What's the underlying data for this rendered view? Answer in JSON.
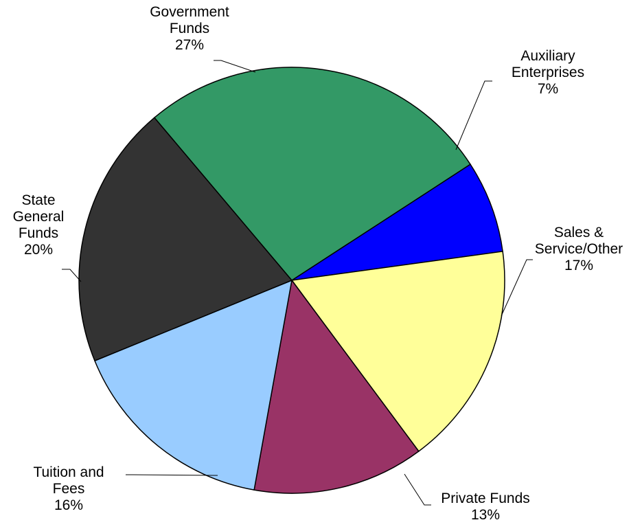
{
  "chart_data": {
    "type": "pie",
    "slices": [
      {
        "name": "Auxiliary Enterprises",
        "label_lines": [
          "Auxiliary",
          "Enterprises"
        ],
        "percent_label": "7%",
        "value": 7,
        "color": "#0000ff"
      },
      {
        "name": "Sales & Service/Other",
        "label_lines": [
          "Sales &",
          "Service/Other"
        ],
        "percent_label": "17%",
        "value": 17,
        "color": "#ffff99"
      },
      {
        "name": "Private Funds",
        "label_lines": [
          "Private Funds"
        ],
        "percent_label": "13%",
        "value": 13,
        "color": "#993366"
      },
      {
        "name": "Tuition and Fees",
        "label_lines": [
          "Tuition and",
          "Fees"
        ],
        "percent_label": "16%",
        "value": 16,
        "color": "#99ccff"
      },
      {
        "name": "State General Funds",
        "label_lines": [
          "State",
          "General",
          "Funds"
        ],
        "percent_label": "20%",
        "value": 20,
        "color": "#333333"
      },
      {
        "name": "Government Funds",
        "label_lines": [
          "Government",
          "Funds"
        ],
        "percent_label": "27%",
        "value": 27,
        "color": "#339966"
      }
    ]
  }
}
